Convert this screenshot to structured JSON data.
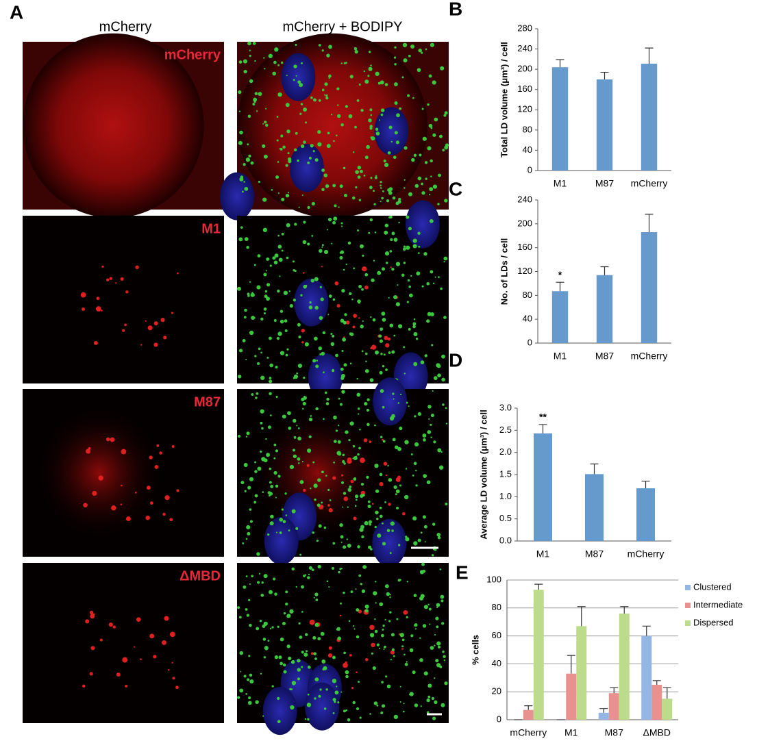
{
  "figure": {
    "panel_label": "A",
    "columns": [
      "mCherry",
      "mCherry + BODIPY"
    ],
    "row_labels": [
      "mCherry",
      "M1",
      "M87",
      "ΔMBD"
    ]
  },
  "chart_data": [
    {
      "type": "bar",
      "panel_label": "B",
      "ylabel": "Total LD volume (μm³) / cell",
      "categories": [
        "M1",
        "M87",
        "mCherry"
      ],
      "values": [
        204,
        180,
        211
      ],
      "errors": [
        15,
        14,
        31
      ],
      "color": "#6699cc",
      "ylim": [
        0,
        280
      ],
      "yticks": [
        0,
        40,
        80,
        120,
        160,
        200,
        240,
        280
      ],
      "grid": false
    },
    {
      "type": "bar",
      "panel_label": "C",
      "ylabel": "No. of LDs / cell",
      "categories": [
        "M1",
        "M87",
        "mCherry"
      ],
      "values": [
        87,
        114,
        186
      ],
      "errors": [
        15,
        14,
        30
      ],
      "annotations": [
        "*",
        null,
        null
      ],
      "color": "#6699cc",
      "ylim": [
        0,
        240
      ],
      "yticks": [
        0,
        40,
        80,
        120,
        160,
        200,
        240
      ],
      "grid": false
    },
    {
      "type": "bar",
      "panel_label": "D",
      "ylabel": "Average LD volume (μm³) / cell",
      "categories": [
        "M1",
        "M87",
        "mCherry"
      ],
      "values": [
        2.43,
        1.51,
        1.19
      ],
      "errors": [
        0.2,
        0.23,
        0.16
      ],
      "annotations": [
        "**",
        null,
        null
      ],
      "color": "#6699cc",
      "ylim": [
        0,
        3
      ],
      "yticks": [
        {
          "value": 0,
          "label": "0.0"
        },
        0.5,
        {
          "value": 1,
          "label": "1.0"
        },
        1.5,
        {
          "value": 2,
          "label": "2.0"
        },
        2.5,
        {
          "value": 3,
          "label": "3.0"
        }
      ],
      "grid": false
    },
    {
      "type": "bar",
      "panel_label": "E",
      "ylabel": "% cells",
      "categories": [
        "mCherry",
        "M1",
        "M87",
        "ΔMBD"
      ],
      "series": [
        {
          "name": "Clustered",
          "color": "#93b6e3",
          "values": [
            0,
            0,
            5,
            60
          ],
          "errors": [
            0,
            0,
            3,
            7
          ]
        },
        {
          "name": "Intermediate",
          "color": "#e8918f",
          "values": [
            7,
            33,
            19,
            25
          ],
          "errors": [
            3,
            13,
            4,
            3
          ]
        },
        {
          "name": "Dispersed",
          "color": "#bcdc8c",
          "values": [
            93,
            67,
            76,
            15
          ],
          "errors": [
            4,
            14,
            5,
            8
          ]
        }
      ],
      "ylim": [
        0,
        100
      ],
      "yticks": [
        0,
        20,
        40,
        60,
        80,
        100
      ],
      "grid": true,
      "legend": "right"
    }
  ]
}
